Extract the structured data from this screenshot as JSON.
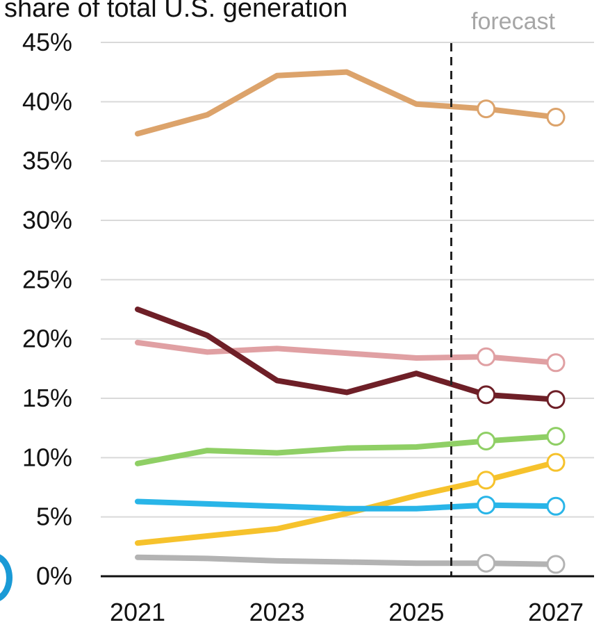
{
  "chart_data": {
    "type": "line",
    "title": "share of total U.S. generation",
    "annotation": "forecast",
    "forecast_divider_year": 2025.5,
    "x": [
      2021,
      2022,
      2023,
      2024,
      2025,
      2026,
      2027
    ],
    "x_tick_labels": [
      "2021",
      "2023",
      "2025",
      "2027"
    ],
    "x_ticks": [
      2021,
      2023,
      2025,
      2027
    ],
    "y_tick_labels": [
      "0%",
      "5%",
      "10%",
      "15%",
      "20%",
      "25%",
      "30%",
      "35%",
      "40%",
      "45%"
    ],
    "y_ticks": [
      0,
      5,
      10,
      15,
      20,
      25,
      30,
      35,
      40,
      45
    ],
    "ylim": [
      0,
      45
    ],
    "xlim": [
      2021,
      2027
    ],
    "grid": true,
    "forecast_markers_from": 2026,
    "series": [
      {
        "color": "#dca36b",
        "values": [
          37.3,
          38.9,
          42.2,
          42.5,
          39.8,
          39.4,
          38.7
        ]
      },
      {
        "color": "#e0a0a3",
        "values": [
          19.7,
          18.9,
          19.2,
          18.8,
          18.4,
          18.5,
          18.0
        ]
      },
      {
        "color": "#6e1f27",
        "values": [
          22.5,
          20.3,
          16.5,
          15.5,
          17.1,
          15.3,
          14.9
        ]
      },
      {
        "color": "#8fcf65",
        "values": [
          9.5,
          10.6,
          10.4,
          10.8,
          10.9,
          11.4,
          11.8
        ]
      },
      {
        "color": "#f6c22c",
        "values": [
          2.8,
          3.4,
          4.0,
          5.3,
          6.8,
          8.1,
          9.6
        ]
      },
      {
        "color": "#29b5e8",
        "values": [
          6.3,
          6.1,
          5.9,
          5.7,
          5.7,
          6.0,
          5.9
        ]
      },
      {
        "color": "#b3b3b3",
        "values": [
          1.6,
          1.5,
          1.3,
          1.2,
          1.1,
          1.1,
          1.0
        ]
      }
    ]
  }
}
